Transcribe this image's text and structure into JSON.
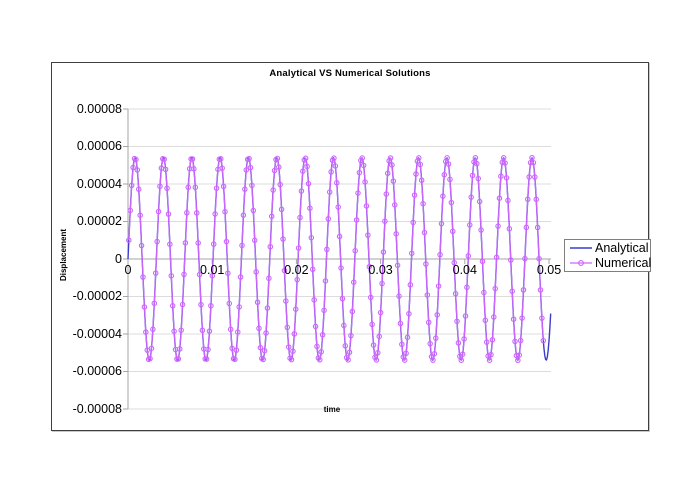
{
  "chart": {
    "title": "Analytical VS Numerical Solutions",
    "x_axis_title": "time",
    "y_axis_title": "Displacement",
    "legend": {
      "entries": [
        {
          "label": "Analytical",
          "color": "#3C3CCC",
          "marker": "none"
        },
        {
          "label": "Numerical",
          "color": "#CC66FF",
          "marker": "circle"
        }
      ],
      "position": "right"
    }
  },
  "chart_data": {
    "type": "line",
    "title": "Analytical VS Numerical Solutions",
    "xlabel": "time",
    "ylabel": "Displacement",
    "xlim": [
      0,
      0.05
    ],
    "ylim": [
      -8e-05,
      8e-05
    ],
    "x_ticks": [
      0,
      0.01,
      0.02,
      0.03,
      0.04,
      0.05
    ],
    "x_tick_labels": [
      "0",
      "0.01",
      "0.02",
      "0.03",
      "0.04",
      "0.05"
    ],
    "y_ticks": [
      8e-05,
      6e-05,
      4e-05,
      2e-05,
      0,
      -2e-05,
      -4e-05,
      -6e-05,
      -8e-05
    ],
    "y_tick_labels": [
      "0.00008",
      "0.00006",
      "0.00004",
      "0.00002",
      "0",
      "-0.00002",
      "-0.00004",
      "-0.00006",
      "-0.00008"
    ],
    "grid": "horizontal",
    "legend_position": "right",
    "colors": {
      "gridline": "#DCDCDC",
      "axis": "#A6A6A6",
      "analytical": "#3C3CCC",
      "numerical": "#CC66FF"
    },
    "series": [
      {
        "name": "Analytical",
        "kind": "sine-continuous",
        "amplitude": 5.4e-05,
        "frequency_hz": 297,
        "phase_rad": 0,
        "t_start": 0,
        "t_end": 0.0502,
        "plot_step": 0.0001,
        "color": "#3C3CCC",
        "marker": "none",
        "line_width": 1.4
      },
      {
        "name": "Numerical",
        "kind": "sine-sampled",
        "amplitude": 5.4e-05,
        "frequency_hz": 297,
        "phase_rad": 0,
        "t_start": 0.0001,
        "t_end": 0.0494,
        "dt": 0.000168,
        "color": "#CC66FF",
        "marker": "circle",
        "marker_radius": 2.2,
        "line_width": 1.2
      }
    ]
  }
}
